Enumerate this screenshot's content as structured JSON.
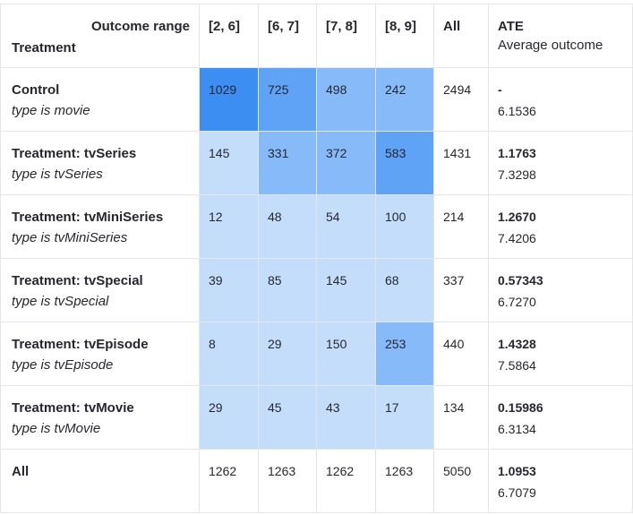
{
  "header": {
    "outcome_range_label": "Outcome range",
    "treatment_label": "Treatment",
    "bins": [
      "[2, 6]",
      "[6, 7]",
      "[7, 8]",
      "[8, 9]"
    ],
    "all_label": "All",
    "ate_title": "ATE",
    "ate_subtitle": "Average outcome"
  },
  "rows": [
    {
      "name": "Control",
      "desc": "type is movie",
      "counts": [
        "1029",
        "725",
        "498",
        "242"
      ],
      "all": "2494",
      "ate": "-",
      "avg": "6.1536"
    },
    {
      "name": "Treatment: tvSeries",
      "desc": "type is tvSeries",
      "counts": [
        "145",
        "331",
        "372",
        "583"
      ],
      "all": "1431",
      "ate": "1.1763",
      "avg": "7.3298"
    },
    {
      "name": "Treatment: tvMiniSeries",
      "desc": "type is tvMiniSeries",
      "counts": [
        "12",
        "48",
        "54",
        "100"
      ],
      "all": "214",
      "ate": "1.2670",
      "avg": "7.4206"
    },
    {
      "name": "Treatment: tvSpecial",
      "desc": "type is tvSpecial",
      "counts": [
        "39",
        "85",
        "145",
        "68"
      ],
      "all": "337",
      "ate": "0.57343",
      "avg": "6.7270"
    },
    {
      "name": "Treatment: tvEpisode",
      "desc": "type is tvEpisode",
      "counts": [
        "8",
        "29",
        "150",
        "253"
      ],
      "all": "440",
      "ate": "1.4328",
      "avg": "7.5864"
    },
    {
      "name": "Treatment: tvMovie",
      "desc": "type is tvMovie",
      "counts": [
        "29",
        "45",
        "43",
        "17"
      ],
      "all": "134",
      "ate": "0.15986",
      "avg": "6.3134"
    }
  ],
  "totals": {
    "label": "All",
    "counts": [
      "1262",
      "1263",
      "1262",
      "1263"
    ],
    "all": "5050",
    "ate": "1.0953",
    "avg": "6.7079"
  },
  "colors": {
    "shade_darkest": "#3c8ef3",
    "shade_dark": "#5ea3f6",
    "shade_mid": "#86baf9",
    "shade_light": "#c3ddfb",
    "border": "#e6e6e6"
  }
}
